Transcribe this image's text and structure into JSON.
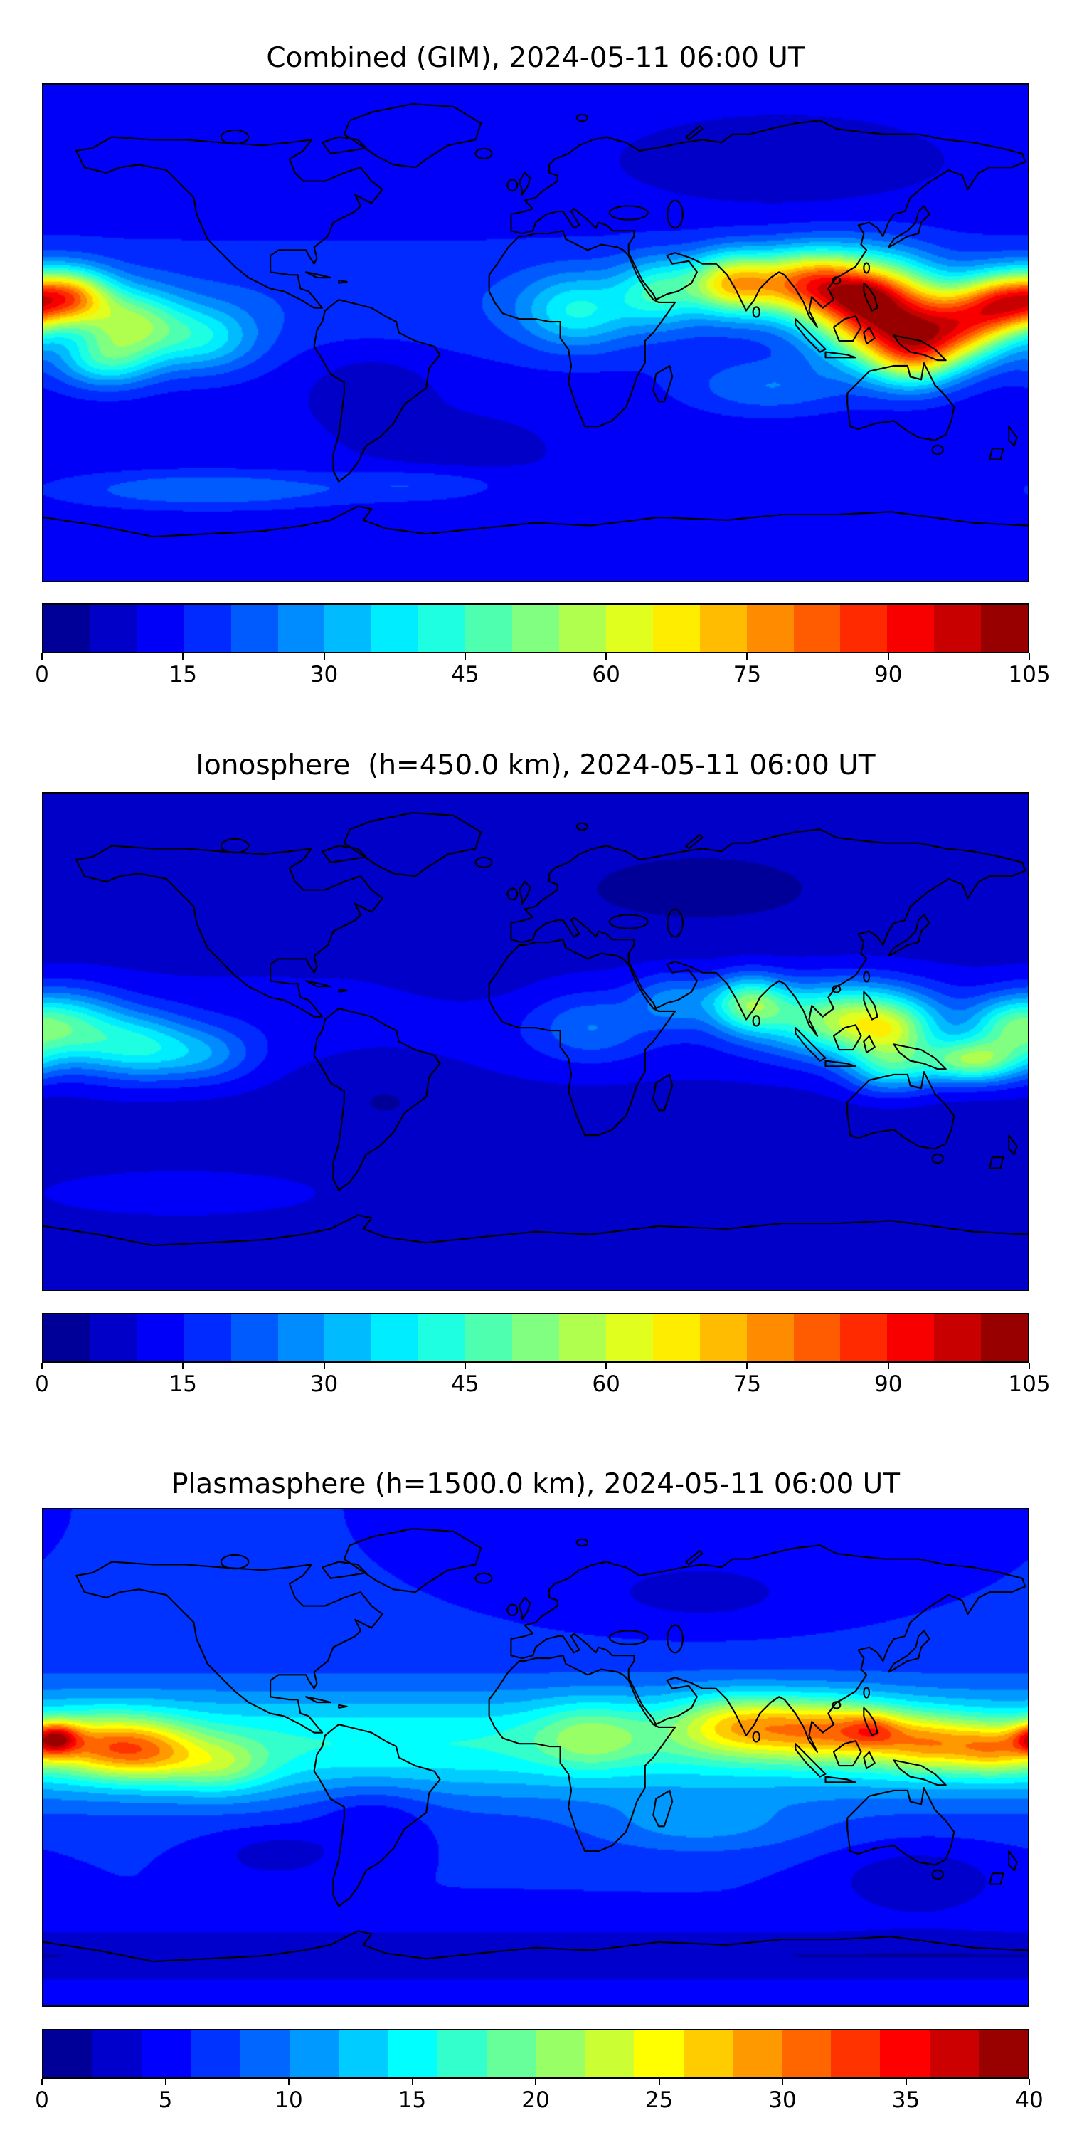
{
  "figure": {
    "background": "#ffffff",
    "text_color": "#000000"
  },
  "chart_data": [
    {
      "type": "heatmap",
      "title": "Combined (GIM), 2024-05-11 06:00 UT",
      "projection": "equirectangular",
      "lon_range": [
        -180,
        180
      ],
      "lat_range": [
        -90,
        90
      ],
      "grid": false,
      "colorbar": {
        "orientation": "horizontal",
        "colormap": "jet",
        "vmin": 0,
        "vmax": 105,
        "level_step": 5,
        "ticks": [
          0,
          15,
          30,
          45,
          60,
          75,
          90,
          105
        ]
      },
      "field_model": {
        "base": 11,
        "bands": [
          {
            "lat": 12,
            "sy": 26,
            "a": 8
          }
        ],
        "blobs": [
          {
            "lon": 100,
            "lat": 18,
            "sx": 20,
            "sy": 12,
            "a": 55
          },
          {
            "lon": 125,
            "lat": 8,
            "sx": 22,
            "sy": 17,
            "a": 75
          },
          {
            "lon": 120,
            "lat": 14,
            "sx": 10,
            "sy": 6,
            "a": 10
          },
          {
            "lon": 138,
            "lat": -8,
            "sx": 16,
            "sy": 12,
            "a": 40
          },
          {
            "lon": 155,
            "lat": 2,
            "sx": 18,
            "sy": 13,
            "a": 50
          },
          {
            "lon": 172,
            "lat": 11,
            "sx": 16,
            "sy": 11,
            "a": 55
          },
          {
            "lon": -170,
            "lat": 13,
            "sx": 15,
            "sy": 10,
            "a": 48
          },
          {
            "lon": -148,
            "lat": 4,
            "sx": 18,
            "sy": 12,
            "a": 32
          },
          {
            "lon": -122,
            "lat": -2,
            "sx": 20,
            "sy": 12,
            "a": 22
          },
          {
            "lon": -157,
            "lat": -10,
            "sx": 18,
            "sy": 10,
            "a": 26
          },
          {
            "lon": 72,
            "lat": 18,
            "sx": 16,
            "sy": 11,
            "a": 48
          },
          {
            "lon": 45,
            "lat": 15,
            "sx": 15,
            "sy": 12,
            "a": 25
          },
          {
            "lon": 15,
            "lat": 8,
            "sx": 20,
            "sy": 13,
            "a": 22
          },
          {
            "lon": 85,
            "lat": -20,
            "sx": 30,
            "sy": 10,
            "a": 12
          },
          {
            "lon": -120,
            "lat": -57,
            "sx": 55,
            "sy": 7,
            "a": 14
          },
          {
            "lon": -40,
            "lat": -55,
            "sx": 30,
            "sy": 6,
            "a": 8
          },
          {
            "lon": -60,
            "lat": -18,
            "sx": 25,
            "sy": 15,
            "a": -6
          },
          {
            "lon": 90,
            "lat": 60,
            "sx": 50,
            "sy": 15,
            "a": -5
          },
          {
            "lon": -30,
            "lat": -42,
            "sx": 30,
            "sy": 12,
            "a": -4
          }
        ]
      }
    },
    {
      "type": "heatmap",
      "title": "Ionosphere  (h=450.0 km), 2024-05-11 06:00 UT",
      "projection": "equirectangular",
      "lon_range": [
        -180,
        180
      ],
      "lat_range": [
        -90,
        90
      ],
      "grid": false,
      "colorbar": {
        "orientation": "horizontal",
        "colormap": "jet",
        "vmin": 0,
        "vmax": 105,
        "level_step": 5,
        "ticks": [
          0,
          15,
          30,
          45,
          60,
          75,
          90,
          105
        ]
      },
      "field_model": {
        "base": 7,
        "bands": [
          {
            "lat": 5,
            "sy": 22,
            "a": 6
          }
        ],
        "blobs": [
          {
            "lon": 115,
            "lat": 8,
            "sx": 30,
            "sy": 13,
            "a": 45
          },
          {
            "lon": 130,
            "lat": 3,
            "sx": 15,
            "sy": 9,
            "a": 18
          },
          {
            "lon": 78,
            "lat": 14,
            "sx": 14,
            "sy": 10,
            "a": 35
          },
          {
            "lon": 160,
            "lat": -7,
            "sx": 18,
            "sy": 8,
            "a": 40
          },
          {
            "lon": 130,
            "lat": -10,
            "sx": 16,
            "sy": 9,
            "a": 25
          },
          {
            "lon": 172,
            "lat": 6,
            "sx": 14,
            "sy": 10,
            "a": 18
          },
          {
            "lon": -172,
            "lat": 5,
            "sx": 20,
            "sy": 13,
            "a": 30
          },
          {
            "lon": -145,
            "lat": -2,
            "sx": 20,
            "sy": 12,
            "a": 25
          },
          {
            "lon": -120,
            "lat": -5,
            "sx": 18,
            "sy": 10,
            "a": 14
          },
          {
            "lon": 20,
            "lat": 5,
            "sx": 20,
            "sy": 12,
            "a": 12
          },
          {
            "lon": 50,
            "lat": 15,
            "sx": 15,
            "sy": 10,
            "a": 15
          },
          {
            "lon": -130,
            "lat": -55,
            "sx": 50,
            "sy": 8,
            "a": 8
          },
          {
            "lon": -55,
            "lat": -15,
            "sx": 30,
            "sy": 18,
            "a": -4
          },
          {
            "lon": 60,
            "lat": 55,
            "sx": 60,
            "sy": 18,
            "a": -3
          },
          {
            "lon": -25,
            "lat": 25,
            "sx": 25,
            "sy": 15,
            "a": -3
          }
        ]
      }
    },
    {
      "type": "heatmap",
      "title": "Plasmasphere (h=1500.0 km), 2024-05-11 06:00 UT",
      "projection": "equirectangular",
      "lon_range": [
        -180,
        180
      ],
      "lat_range": [
        -90,
        90
      ],
      "grid": false,
      "colorbar": {
        "orientation": "horizontal",
        "colormap": "jet",
        "vmin": 0,
        "vmax": 40,
        "level_step": 2,
        "ticks": [
          0,
          5,
          10,
          15,
          20,
          25,
          30,
          35,
          40
        ]
      },
      "field_model": {
        "base": 6,
        "bands": [
          {
            "lat": 5,
            "sy": 20,
            "a": 10
          },
          {
            "lat": -72,
            "sy": 10,
            "a": -4
          }
        ],
        "blobs": [
          {
            "lon": -176,
            "lat": 7,
            "sx": 9,
            "sy": 6,
            "a": 16
          },
          {
            "lon": -160,
            "lat": 4,
            "sx": 20,
            "sy": 11,
            "a": 12
          },
          {
            "lon": -140,
            "lat": 2,
            "sx": 18,
            "sy": 11,
            "a": 10
          },
          {
            "lon": -115,
            "lat": -3,
            "sx": 18,
            "sy": 10,
            "a": 7
          },
          {
            "lon": 75,
            "lat": 12,
            "sx": 25,
            "sy": 11,
            "a": 12
          },
          {
            "lon": 110,
            "lat": 10,
            "sx": 25,
            "sy": 11,
            "a": 13
          },
          {
            "lon": 123,
            "lat": 10,
            "sx": 10,
            "sy": 6,
            "a": 6
          },
          {
            "lon": 145,
            "lat": 5,
            "sx": 20,
            "sy": 10,
            "a": 12
          },
          {
            "lon": 168,
            "lat": 3,
            "sx": 14,
            "sy": 9,
            "a": 10
          },
          {
            "lon": 20,
            "lat": 8,
            "sx": 20,
            "sy": 12,
            "a": 6
          },
          {
            "lon": 60,
            "lat": -25,
            "sx": 40,
            "sy": 10,
            "a": 4
          },
          {
            "lon": 140,
            "lat": -45,
            "sx": 30,
            "sy": 12,
            "a": -4
          },
          {
            "lon": -95,
            "lat": -35,
            "sx": 25,
            "sy": 10,
            "a": -3
          },
          {
            "lon": 60,
            "lat": 60,
            "sx": 40,
            "sy": 12,
            "a": -3
          },
          {
            "lon": -60,
            "lat": -20,
            "sx": 22,
            "sy": 12,
            "a": -3
          }
        ]
      }
    }
  ]
}
